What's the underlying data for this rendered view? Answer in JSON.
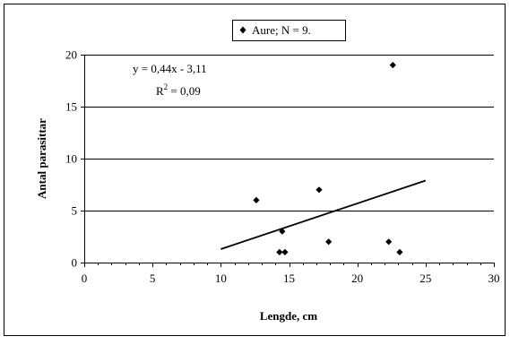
{
  "chart_data": {
    "type": "scatter",
    "title": "",
    "xlabel": "Lengde, cm",
    "ylabel": "Antal parasittar",
    "xlim": [
      0,
      30
    ],
    "ylim": [
      0,
      20
    ],
    "xticks": [
      0,
      5,
      10,
      15,
      20,
      25,
      30
    ],
    "yticks": [
      0,
      5,
      10,
      15,
      20
    ],
    "x_tick_labels": [
      "0",
      "5",
      "10",
      "15",
      "20",
      "25",
      "30"
    ],
    "y_tick_labels": [
      "0",
      "5",
      "10",
      "15",
      "20"
    ],
    "grid": "horizontal major lines",
    "legend_position": "top-center",
    "series": [
      {
        "name": "Aure; N =  9.",
        "marker": "diamond",
        "color": "#000000",
        "points": [
          {
            "x": 12.6,
            "y": 6
          },
          {
            "x": 14.3,
            "y": 1
          },
          {
            "x": 14.5,
            "y": 3
          },
          {
            "x": 14.7,
            "y": 1
          },
          {
            "x": 17.2,
            "y": 7
          },
          {
            "x": 17.9,
            "y": 2
          },
          {
            "x": 22.3,
            "y": 2
          },
          {
            "x": 22.6,
            "y": 19
          },
          {
            "x": 23.1,
            "y": 1
          }
        ]
      }
    ],
    "trendline": {
      "type": "linear",
      "slope": 0.44,
      "intercept": -3.11,
      "x_range": [
        10,
        25
      ],
      "equation_label": "y = 0,44x - 3,11",
      "r2_prefix": "R",
      "r2_superscript": "2",
      "r2_value": " = 0,09"
    }
  }
}
